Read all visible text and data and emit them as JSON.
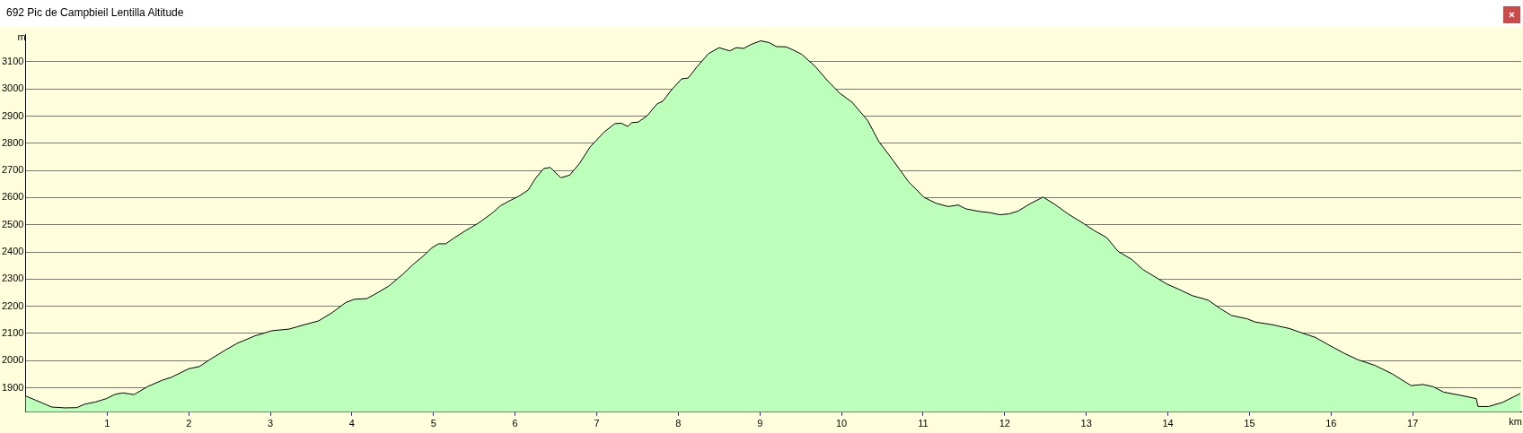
{
  "chart_data": {
    "type": "area",
    "title": "692 Pic de Campbieil Lentilla Altitude",
    "xlabel": "km",
    "ylabel": "m",
    "color": "#bbffbb",
    "marker": "none",
    "grid": "y",
    "xlim": [
      0,
      18.33
    ],
    "xticks": [
      1,
      2,
      3,
      4,
      5,
      6,
      7,
      8,
      9,
      10,
      11,
      12,
      13,
      14,
      15,
      16,
      17
    ],
    "ylim": [
      1810,
      3200
    ],
    "yticks": [
      1900,
      2000,
      2100,
      2200,
      2300,
      2400,
      2500,
      2600,
      2700,
      2800,
      2900,
      3000,
      3100
    ],
    "x": [
      0,
      0.32,
      0.49,
      0.63,
      0.72,
      0.86,
      0.99,
      1.1,
      1.19,
      1.33,
      1.5,
      1.67,
      1.79,
      2.0,
      2.13,
      2.26,
      2.45,
      2.59,
      2.81,
      3.02,
      3.23,
      3.44,
      3.59,
      3.76,
      3.92,
      4.03,
      4.18,
      4.28,
      4.45,
      4.62,
      4.75,
      4.87,
      4.98,
      5.06,
      5.15,
      5.25,
      5.38,
      5.55,
      5.72,
      5.82,
      5.93,
      6.05,
      6.16,
      6.25,
      6.35,
      6.43,
      6.56,
      6.67,
      6.79,
      6.92,
      7.09,
      7.22,
      7.3,
      7.38,
      7.43,
      7.51,
      7.62,
      7.74,
      7.81,
      7.91,
      8.04,
      8.12,
      8.23,
      8.37,
      8.5,
      8.63,
      8.71,
      8.8,
      8.9,
      9.01,
      9.11,
      9.2,
      9.32,
      9.41,
      9.51,
      9.68,
      9.83,
      9.98,
      10.13,
      10.32,
      10.46,
      10.63,
      10.82,
      11.01,
      11.16,
      11.31,
      11.43,
      11.52,
      11.69,
      11.81,
      11.94,
      12.05,
      12.16,
      12.31,
      12.47,
      12.62,
      12.77,
      12.98,
      13.1,
      13.25,
      13.39,
      13.56,
      13.69,
      13.81,
      13.98,
      14.13,
      14.3,
      14.49,
      14.65,
      14.78,
      14.97,
      15.07,
      15.28,
      15.49,
      15.66,
      15.81,
      15.95,
      16.16,
      16.33,
      16.54,
      16.75,
      16.98,
      17.13,
      17.25,
      17.38,
      17.59,
      17.78,
      17.8,
      17.93,
      18.1,
      18.22,
      18.32
    ],
    "values": [
      1870,
      1829,
      1826,
      1827,
      1839,
      1848,
      1860,
      1876,
      1881,
      1875,
      1905,
      1927,
      1939,
      1970,
      1978,
      2004,
      2039,
      2063,
      2091,
      2110,
      2116,
      2134,
      2146,
      2177,
      2213,
      2226,
      2228,
      2244,
      2274,
      2317,
      2354,
      2384,
      2415,
      2430,
      2430,
      2451,
      2476,
      2506,
      2543,
      2570,
      2588,
      2606,
      2628,
      2671,
      2707,
      2711,
      2673,
      2683,
      2726,
      2787,
      2841,
      2872,
      2874,
      2862,
      2876,
      2878,
      2902,
      2945,
      2955,
      2994,
      3037,
      3040,
      3082,
      3130,
      3152,
      3140,
      3152,
      3149,
      3165,
      3177,
      3171,
      3156,
      3155,
      3143,
      3128,
      3082,
      3030,
      2984,
      2951,
      2884,
      2805,
      2738,
      2659,
      2601,
      2579,
      2567,
      2573,
      2559,
      2549,
      2545,
      2537,
      2540,
      2550,
      2577,
      2602,
      2574,
      2541,
      2502,
      2478,
      2453,
      2402,
      2372,
      2336,
      2314,
      2283,
      2263,
      2239,
      2223,
      2190,
      2166,
      2154,
      2142,
      2132,
      2118,
      2100,
      2085,
      2061,
      2027,
      2003,
      1982,
      1951,
      1908,
      1912,
      1904,
      1884,
      1872,
      1860,
      1831,
      1831,
      1846,
      1864,
      1879
    ]
  }
}
